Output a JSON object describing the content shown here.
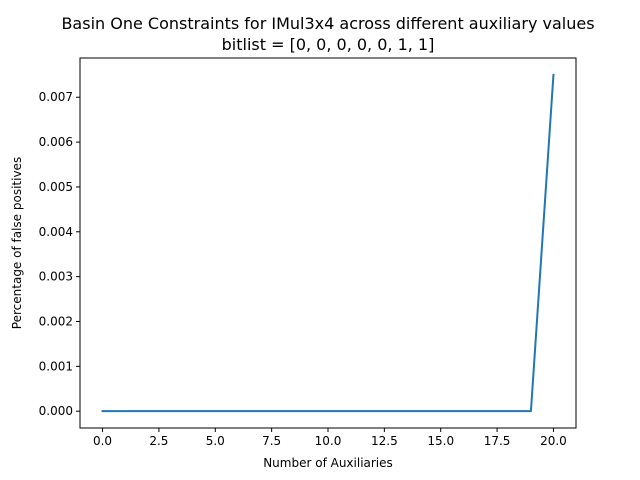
{
  "chart_data": {
    "type": "line",
    "title": "Basin One Constraints for IMul3x4 across different auxiliary values",
    "subtitle": "bitlist = [0, 0, 0, 0, 0, 1, 1]",
    "xlabel": "Number of Auxiliaries",
    "ylabel": "Percentage of false positives",
    "xlim": [
      -1.0,
      21.0
    ],
    "ylim": [
      -0.000375,
      0.007875
    ],
    "xticks": [
      0.0,
      2.5,
      5.0,
      7.5,
      10.0,
      12.5,
      15.0,
      17.5,
      20.0
    ],
    "xtick_labels": [
      "0.0",
      "2.5",
      "5.0",
      "7.5",
      "10.0",
      "12.5",
      "15.0",
      "17.5",
      "20.0"
    ],
    "yticks": [
      0.0,
      0.001,
      0.002,
      0.003,
      0.004,
      0.005,
      0.006,
      0.007
    ],
    "ytick_labels": [
      "0.000",
      "0.001",
      "0.002",
      "0.003",
      "0.004",
      "0.005",
      "0.006",
      "0.007"
    ],
    "grid": false,
    "series": [
      {
        "color": "#1f77b4",
        "x": [
          0,
          1,
          2,
          3,
          4,
          5,
          6,
          7,
          8,
          9,
          10,
          11,
          12,
          13,
          14,
          15,
          16,
          17,
          18,
          19,
          20
        ],
        "y": [
          0,
          0,
          0,
          0,
          0,
          0,
          0,
          0,
          0,
          0,
          0,
          0,
          0,
          0,
          0,
          0,
          0,
          0,
          0,
          0,
          0.0075
        ]
      }
    ]
  }
}
